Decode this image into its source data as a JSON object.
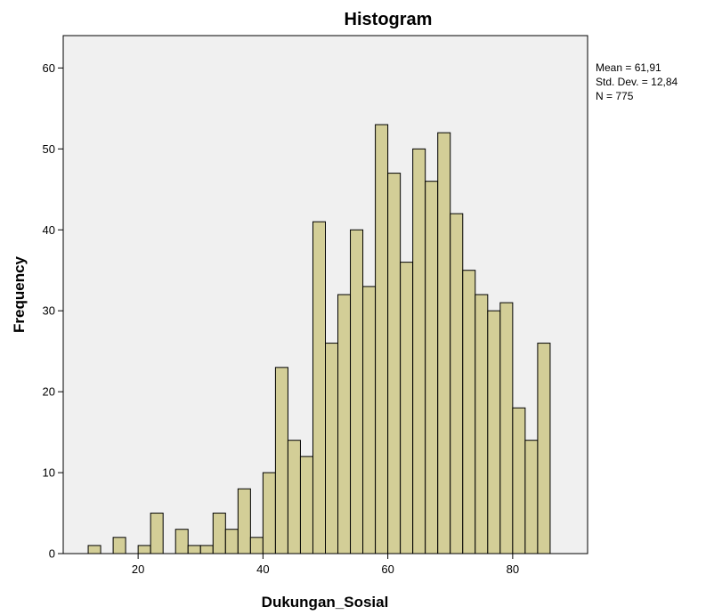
{
  "chart_data": {
    "type": "bar",
    "title": "Histogram",
    "xlabel": "Dukungan_Sosial",
    "ylabel": "Frequency",
    "xlim": [
      8,
      92
    ],
    "ylim": [
      0,
      64
    ],
    "xticks": [
      20,
      40,
      60,
      80
    ],
    "yticks": [
      0,
      10,
      20,
      30,
      40,
      50,
      60
    ],
    "bin_width": 2,
    "bin_start": 12,
    "values": [
      1,
      0,
      2,
      0,
      1,
      5,
      0,
      3,
      1,
      1,
      5,
      3,
      8,
      2,
      10,
      23,
      14,
      12,
      41,
      26,
      32,
      40,
      33,
      53,
      47,
      36,
      50,
      46,
      52,
      42,
      35,
      32,
      30,
      31,
      18,
      14,
      26
    ],
    "grid": false,
    "bar_color": "#D3CE97",
    "plot_background": "#F0F0F0",
    "stats": [
      "Mean = 61,91",
      "Std. Dev. = 12,84",
      "N = 775"
    ]
  }
}
